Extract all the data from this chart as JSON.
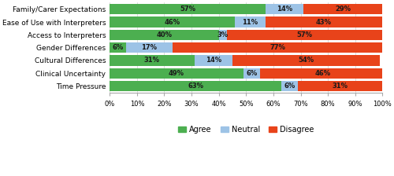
{
  "categories": [
    "Time Pressure",
    "Clinical Uncertainty",
    "Cultural Differences",
    "Gender Differences",
    "Access to Interpreters",
    "Ease of Use with Interpreters",
    "Family/Carer Expectations"
  ],
  "agree": [
    63,
    49,
    31,
    6,
    40,
    46,
    57
  ],
  "neutral": [
    6,
    6,
    14,
    17,
    3,
    11,
    14
  ],
  "disagree": [
    31,
    46,
    54,
    77,
    57,
    43,
    29
  ],
  "agree_labels": [
    "63%",
    "49%",
    "31%",
    "6%",
    "40%",
    "46%",
    "57%"
  ],
  "neutral_labels": [
    "6%",
    "6%",
    "14%",
    "17%",
    "3%",
    "11%",
    "14%"
  ],
  "disagree_labels": [
    "31%",
    "46%",
    "54%",
    "77%",
    "57%",
    "43%",
    "29%"
  ],
  "color_agree": "#4CAF50",
  "color_neutral": "#9DC3E6",
  "color_disagree": "#E8431A",
  "legend_labels": [
    "Agree",
    "Neutral",
    "Disagree"
  ],
  "xlabel_ticks": [
    "0%",
    "10%",
    "20%",
    "30%",
    "40%",
    "50%",
    "60%",
    "70%",
    "80%",
    "90%",
    "100%"
  ],
  "bar_height": 0.82,
  "figsize": [
    5.0,
    2.24
  ],
  "dpi": 100,
  "label_fontsize": 6.0,
  "tick_fontsize": 6.0,
  "legend_fontsize": 7.0,
  "ytick_fontsize": 6.5
}
